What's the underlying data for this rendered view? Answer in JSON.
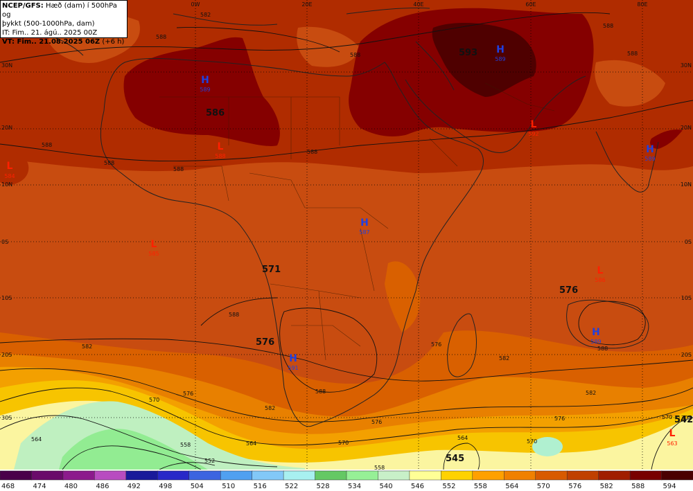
{
  "header": {
    "line1_bold": "NCEP/GFS:",
    "line1_rest": " Hæð (dam) í 500hPa og",
    "line2": "þykkt (500-1000hPa, dam)",
    "line3": "IT: Fim.. 21. ágú.. 2025 00Z",
    "line4_bold": "VT: Fim.. 21.08.2025 06Z",
    "line4_rest": " (+6 h)"
  },
  "lon_labels": [
    "0W",
    "20E",
    "40E",
    "60E",
    "80E"
  ],
  "lat_labels": [
    "30N",
    "20N",
    "10N",
    "0S",
    "10S",
    "20S",
    "30S"
  ],
  "pressure_centers": [
    {
      "type": "H",
      "value": "589"
    },
    {
      "type": "H",
      "value": "589"
    },
    {
      "type": "L",
      "value": "584"
    },
    {
      "type": "L",
      "value": "588"
    },
    {
      "type": "L",
      "value": "592"
    },
    {
      "type": "H",
      "value": "589"
    },
    {
      "type": "H",
      "value": "587"
    },
    {
      "type": "L",
      "value": "585"
    },
    {
      "type": "L",
      "value": "586"
    },
    {
      "type": "H",
      "value": "589"
    },
    {
      "type": "H",
      "value": "591"
    },
    {
      "type": "L",
      "value": "563"
    }
  ],
  "thickness_labels": [
    "593",
    "586",
    "571",
    "576",
    "576",
    "545",
    "542"
  ],
  "contour_labels": [
    "582",
    "588",
    "588",
    "588",
    "588",
    "588",
    "588",
    "582",
    "576",
    "570",
    "564",
    "558",
    "552",
    "582",
    "576",
    "570",
    "564",
    "558",
    "576",
    "582",
    "570",
    "564",
    "570",
    "576",
    "582",
    "588",
    "588",
    "588",
    "588",
    "588"
  ],
  "colorbar": {
    "values": [
      "468",
      "474",
      "480",
      "486",
      "492",
      "498",
      "504",
      "510",
      "516",
      "522",
      "528",
      "534",
      "540",
      "546",
      "552",
      "558",
      "564",
      "570",
      "576",
      "582",
      "588",
      "594"
    ],
    "colors": [
      "#4a004a",
      "#6a0a6a",
      "#8c1a8c",
      "#b84cc0",
      "#1a1a9a",
      "#2828c8",
      "#3c64e0",
      "#50a0f0",
      "#82c8f8",
      "#a8f0f0",
      "#64c864",
      "#96f096",
      "#c8f0c8",
      "#ffff96",
      "#ffd200",
      "#ffa000",
      "#f08000",
      "#d85a00",
      "#c04000",
      "#a01e00",
      "#780000",
      "#4a0000"
    ]
  },
  "colors": {
    "c546": "#fbf5a0",
    "c552": "#f7c400",
    "c558": "#f3a000",
    "c564": "#e88000",
    "c570": "#d96000",
    "c576": "#c84c10",
    "c582": "#b02c00",
    "c588": "#850000",
    "c594": "#4f0000",
    "green1": "#bff0c0",
    "green2": "#92ec92",
    "green3": "#b0f0d0",
    "high": "#2040e0",
    "low": "#ff2000"
  }
}
